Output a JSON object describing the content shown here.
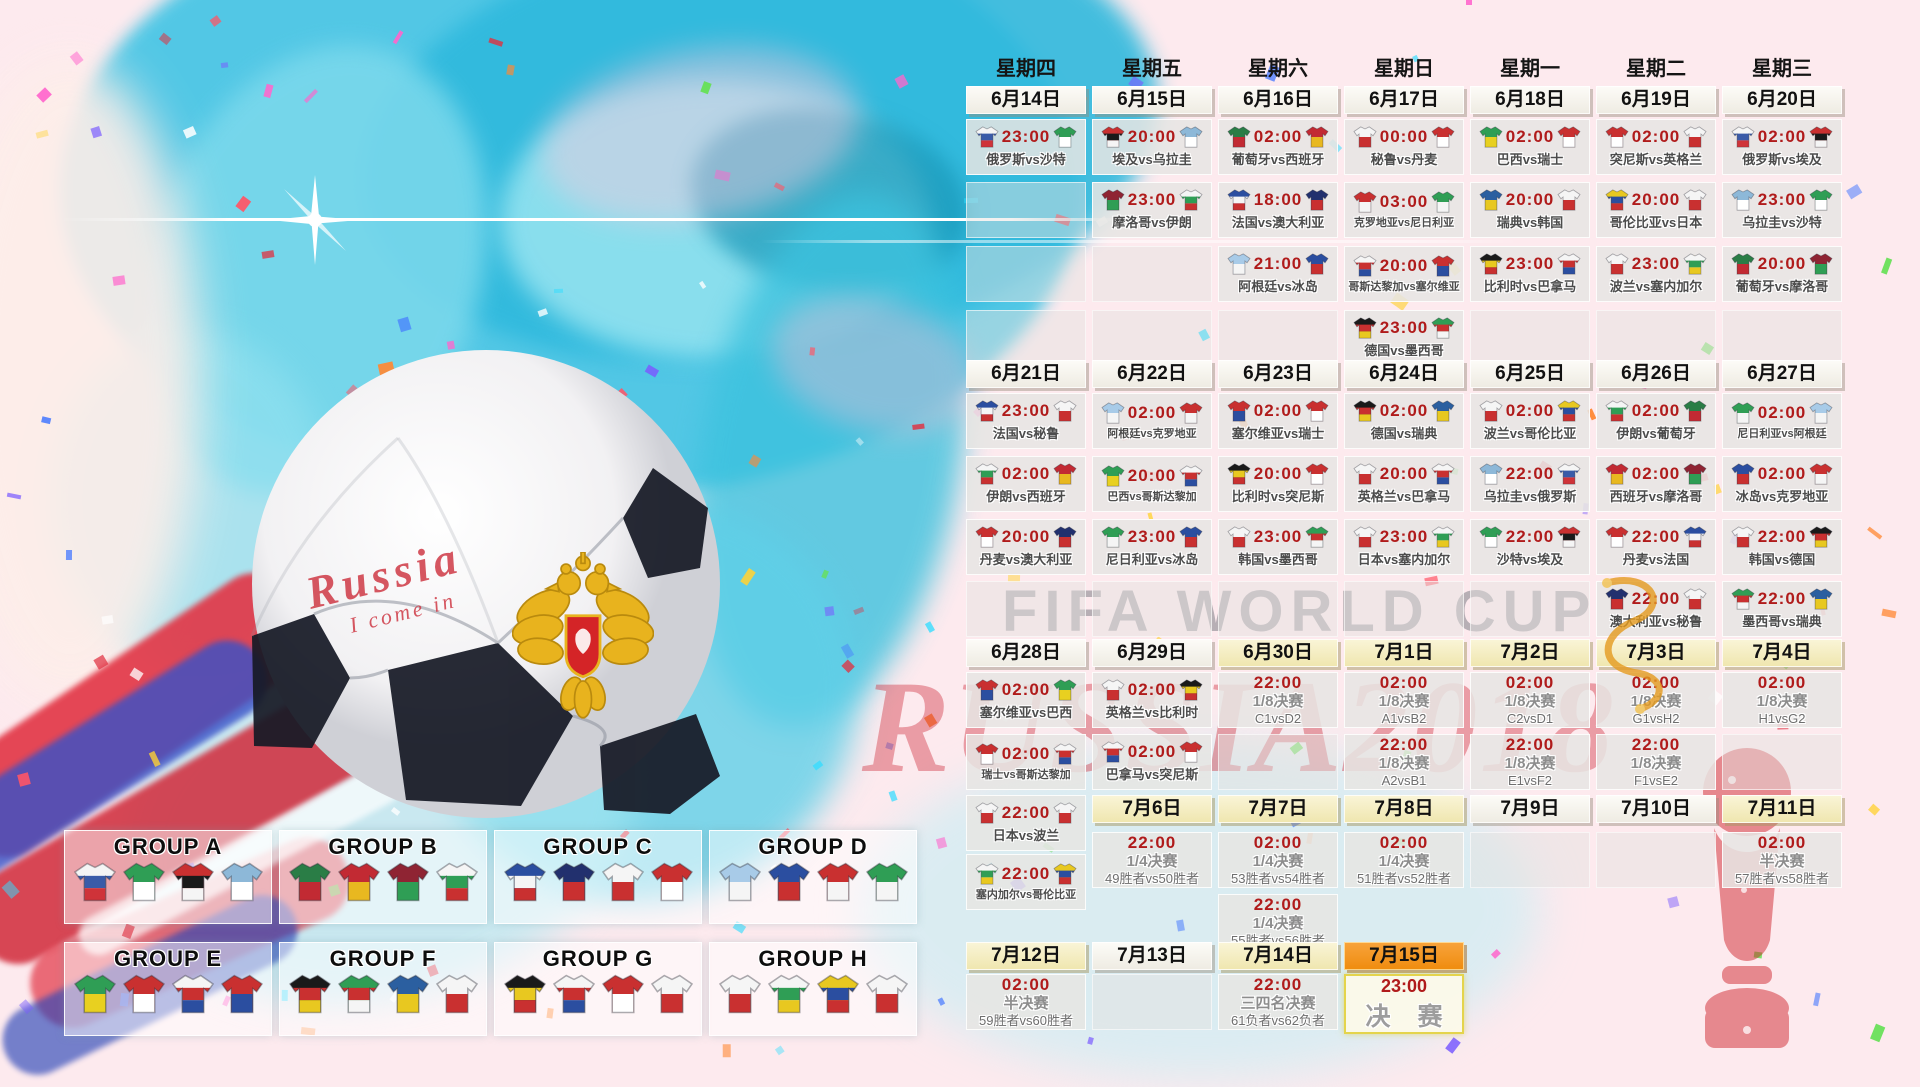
{
  "watermark": {
    "line1": "FIFA WORLD CUP",
    "line2": "RUSSIA2018"
  },
  "ball": {
    "text1": "Russia",
    "text2": "I come in"
  },
  "calendar": {
    "weekdays": [
      "星期四",
      "星期五",
      "星期六",
      "星期日",
      "星期一",
      "星期二",
      "星期三"
    ],
    "rows": [
      {
        "kind": "dates",
        "cells": [
          {
            "t": "d",
            "label": "6月14日",
            "s": "plain"
          },
          {
            "t": "d",
            "label": "6月15日",
            "s": "plain"
          },
          {
            "t": "d",
            "label": "6月16日",
            "s": "plain"
          },
          {
            "t": "d",
            "label": "6月17日",
            "s": "plain"
          },
          {
            "t": "d",
            "label": "6月18日",
            "s": "plain"
          },
          {
            "t": "d",
            "label": "6月19日",
            "s": "plain"
          },
          {
            "t": "d",
            "label": "6月20日",
            "s": "plain"
          }
        ]
      },
      {
        "kind": "cells",
        "cells": [
          {
            "t": "m",
            "time": "23:00",
            "home": "俄罗斯",
            "away": "沙特",
            "label": "俄罗斯vs沙特"
          },
          {
            "t": "m",
            "time": "20:00",
            "home": "埃及",
            "away": "乌拉圭",
            "label": "埃及vs乌拉圭"
          },
          {
            "t": "m",
            "time": "02:00",
            "home": "葡萄牙",
            "away": "西班牙",
            "label": "葡萄牙vs西班牙"
          },
          {
            "t": "m",
            "time": "00:00",
            "home": "秘鲁",
            "away": "丹麦",
            "label": "秘鲁vs丹麦"
          },
          {
            "t": "m",
            "time": "02:00",
            "home": "巴西",
            "away": "瑞士",
            "label": "巴西vs瑞士"
          },
          {
            "t": "m",
            "time": "02:00",
            "home": "突尼斯",
            "away": "英格兰",
            "label": "突尼斯vs英格兰"
          },
          {
            "t": "m",
            "time": "02:00",
            "home": "俄罗斯",
            "away": "埃及",
            "label": "俄罗斯vs埃及"
          }
        ]
      },
      {
        "kind": "cells",
        "cells": [
          {
            "t": "e"
          },
          {
            "t": "m",
            "time": "23:00",
            "home": "摩洛哥",
            "away": "伊朗",
            "label": "摩洛哥vs伊朗"
          },
          {
            "t": "m",
            "time": "18:00",
            "home": "法国",
            "away": "澳大利亚",
            "label": "法国vs澳大利亚"
          },
          {
            "t": "m",
            "time": "03:00",
            "home": "克罗地亚",
            "away": "尼日利亚",
            "label": "克罗地亚vs尼日利亚"
          },
          {
            "t": "m",
            "time": "20:00",
            "home": "瑞典",
            "away": "韩国",
            "label": "瑞典vs韩国"
          },
          {
            "t": "m",
            "time": "20:00",
            "home": "哥伦比亚",
            "away": "日本",
            "label": "哥伦比亚vs日本"
          },
          {
            "t": "m",
            "time": "23:00",
            "home": "乌拉圭",
            "away": "沙特",
            "label": "乌拉圭vs沙特"
          }
        ]
      },
      {
        "kind": "cells",
        "cells": [
          {
            "t": "e"
          },
          {
            "t": "e"
          },
          {
            "t": "m",
            "time": "21:00",
            "home": "阿根廷",
            "away": "冰岛",
            "label": "阿根廷vs冰岛"
          },
          {
            "t": "m",
            "time": "20:00",
            "home": "哥斯达黎加",
            "away": "塞尔维亚",
            "label": "哥斯达黎加vs塞尔维亚"
          },
          {
            "t": "m",
            "time": "23:00",
            "home": "比利时",
            "away": "巴拿马",
            "label": "比利时vs巴拿马"
          },
          {
            "t": "m",
            "time": "23:00",
            "home": "波兰",
            "away": "塞内加尔",
            "label": "波兰vs塞内加尔"
          },
          {
            "t": "m",
            "time": "20:00",
            "home": "葡萄牙",
            "away": "摩洛哥",
            "label": "葡萄牙vs摩洛哥"
          }
        ]
      },
      {
        "kind": "cells",
        "cells": [
          {
            "t": "e"
          },
          {
            "t": "e"
          },
          {
            "t": "e"
          },
          {
            "t": "m",
            "time": "23:00",
            "home": "德国",
            "away": "墨西哥",
            "label": "德国vs墨西哥"
          },
          {
            "t": "e"
          },
          {
            "t": "e"
          },
          {
            "t": "e"
          }
        ]
      },
      {
        "kind": "dates",
        "cells": [
          {
            "t": "d",
            "label": "6月21日",
            "s": "plain"
          },
          {
            "t": "d",
            "label": "6月22日",
            "s": "plain"
          },
          {
            "t": "d",
            "label": "6月23日",
            "s": "plain"
          },
          {
            "t": "d",
            "label": "6月24日",
            "s": "plain"
          },
          {
            "t": "d",
            "label": "6月25日",
            "s": "plain"
          },
          {
            "t": "d",
            "label": "6月26日",
            "s": "plain"
          },
          {
            "t": "d",
            "label": "6月27日",
            "s": "plain"
          }
        ]
      },
      {
        "kind": "cells",
        "cells": [
          {
            "t": "m",
            "time": "23:00",
            "home": "法国",
            "away": "秘鲁",
            "label": "法国vs秘鲁"
          },
          {
            "t": "m",
            "time": "02:00",
            "home": "阿根廷",
            "away": "克罗地亚",
            "label": "阿根廷vs克罗地亚"
          },
          {
            "t": "m",
            "time": "02:00",
            "home": "塞尔维亚",
            "away": "瑞士",
            "label": "塞尔维亚vs瑞士"
          },
          {
            "t": "m",
            "time": "02:00",
            "home": "德国",
            "away": "瑞典",
            "label": "德国vs瑞典"
          },
          {
            "t": "m",
            "time": "02:00",
            "home": "波兰",
            "away": "哥伦比亚",
            "label": "波兰vs哥伦比亚"
          },
          {
            "t": "m",
            "time": "02:00",
            "home": "伊朗",
            "away": "葡萄牙",
            "label": "伊朗vs葡萄牙"
          },
          {
            "t": "m",
            "time": "02:00",
            "home": "尼日利亚",
            "away": "阿根廷",
            "label": "尼日利亚vs阿根廷"
          }
        ]
      },
      {
        "kind": "cells",
        "cells": [
          {
            "t": "m",
            "time": "02:00",
            "home": "伊朗",
            "away": "西班牙",
            "label": "伊朗vs西班牙"
          },
          {
            "t": "m",
            "time": "20:00",
            "home": "巴西",
            "away": "哥斯达黎加",
            "label": "巴西vs哥斯达黎加"
          },
          {
            "t": "m",
            "time": "20:00",
            "home": "比利时",
            "away": "突尼斯",
            "label": "比利时vs突尼斯"
          },
          {
            "t": "m",
            "time": "20:00",
            "home": "英格兰",
            "away": "巴拿马",
            "label": "英格兰vs巴拿马"
          },
          {
            "t": "m",
            "time": "22:00",
            "home": "乌拉圭",
            "away": "俄罗斯",
            "label": "乌拉圭vs俄罗斯"
          },
          {
            "t": "m",
            "time": "02:00",
            "home": "西班牙",
            "away": "摩洛哥",
            "label": "西班牙vs摩洛哥"
          },
          {
            "t": "m",
            "time": "02:00",
            "home": "冰岛",
            "away": "克罗地亚",
            "label": "冰岛vs克罗地亚"
          }
        ]
      },
      {
        "kind": "cells",
        "cells": [
          {
            "t": "m",
            "time": "20:00",
            "home": "丹麦",
            "away": "澳大利亚",
            "label": "丹麦vs澳大利亚"
          },
          {
            "t": "m",
            "time": "23:00",
            "home": "尼日利亚",
            "away": "冰岛",
            "label": "尼日利亚vs冰岛"
          },
          {
            "t": "m",
            "time": "23:00",
            "home": "韩国",
            "away": "墨西哥",
            "label": "韩国vs墨西哥"
          },
          {
            "t": "m",
            "time": "23:00",
            "home": "日本",
            "away": "塞内加尔",
            "label": "日本vs塞内加尔"
          },
          {
            "t": "m",
            "time": "22:00",
            "home": "沙特",
            "away": "埃及",
            "label": "沙特vs埃及"
          },
          {
            "t": "m",
            "time": "22:00",
            "home": "丹麦",
            "away": "法国",
            "label": "丹麦vs法国"
          },
          {
            "t": "m",
            "time": "22:00",
            "home": "韩国",
            "away": "德国",
            "label": "韩国vs德国"
          }
        ]
      },
      {
        "kind": "cells",
        "cells": [
          {
            "t": "e"
          },
          {
            "t": "e"
          },
          {
            "t": "e"
          },
          {
            "t": "e"
          },
          {
            "t": "e"
          },
          {
            "t": "m",
            "time": "22:00",
            "home": "澳大利亚",
            "away": "秘鲁",
            "label": "澳大利亚vs秘鲁"
          },
          {
            "t": "m",
            "time": "22:00",
            "home": "墨西哥",
            "away": "瑞典",
            "label": "墨西哥vs瑞典"
          }
        ]
      },
      {
        "kind": "dates",
        "cells": [
          {
            "t": "d",
            "label": "6月28日",
            "s": "plain"
          },
          {
            "t": "d",
            "label": "6月29日",
            "s": "plain"
          },
          {
            "t": "d",
            "label": "6月30日",
            "s": "hl"
          },
          {
            "t": "d",
            "label": "7月1日",
            "s": "hl"
          },
          {
            "t": "d",
            "label": "7月2日",
            "s": "hl"
          },
          {
            "t": "d",
            "label": "7月3日",
            "s": "hl"
          },
          {
            "t": "d",
            "label": "7月4日",
            "s": "hl"
          }
        ]
      },
      {
        "kind": "cells",
        "cells": [
          {
            "t": "m",
            "time": "02:00",
            "home": "塞尔维亚",
            "away": "巴西",
            "label": "塞尔维亚vs巴西"
          },
          {
            "t": "m",
            "time": "02:00",
            "home": "英格兰",
            "away": "比利时",
            "label": "英格兰vs比利时"
          },
          {
            "t": "k",
            "time": "22:00",
            "stage": "1/8决赛",
            "line": "C1vsD2"
          },
          {
            "t": "k",
            "time": "02:00",
            "stage": "1/8决赛",
            "line": "A1vsB2"
          },
          {
            "t": "k",
            "time": "02:00",
            "stage": "1/8决赛",
            "line": "C2vsD1"
          },
          {
            "t": "k",
            "time": "02:00",
            "stage": "1/8决赛",
            "line": "G1vsH2"
          },
          {
            "t": "k",
            "time": "02:00",
            "stage": "1/8决赛",
            "line": "H1vsG2"
          }
        ]
      },
      {
        "kind": "cells",
        "cells": [
          {
            "t": "m",
            "time": "02:00",
            "home": "瑞士",
            "away": "哥斯达黎加",
            "label": "瑞士vs哥斯达黎加"
          },
          {
            "t": "m",
            "time": "02:00",
            "home": "巴拿马",
            "away": "突尼斯",
            "label": "巴拿马vs突尼斯"
          },
          {
            "t": "e"
          },
          {
            "t": "k",
            "time": "22:00",
            "stage": "1/8决赛",
            "line": "A2vsB1"
          },
          {
            "t": "k",
            "time": "22:00",
            "stage": "1/8决赛",
            "line": "E1vsF2"
          },
          {
            "t": "k",
            "time": "22:00",
            "stage": "1/8决赛",
            "line": "F1vsE2"
          },
          {
            "t": "e"
          }
        ]
      },
      {
        "kind": "cells",
        "cells": [
          {
            "t": "m",
            "time": "22:00",
            "home": "日本",
            "away": "波兰",
            "label": "日本vs波兰"
          },
          {
            "t": "d",
            "label": "7月6日",
            "s": "hl"
          },
          {
            "t": "d",
            "label": "7月7日",
            "s": "hl"
          },
          {
            "t": "d",
            "label": "7月8日",
            "s": "hl"
          },
          {
            "t": "d",
            "label": "7月9日",
            "s": "plain"
          },
          {
            "t": "d",
            "label": "7月10日",
            "s": "plain"
          },
          {
            "t": "d",
            "label": "7月11日",
            "s": "hl"
          }
        ]
      },
      {
        "kind": "cells",
        "cells": [
          {
            "t": "m",
            "time": "22:00",
            "home": "塞内加尔",
            "away": "哥伦比亚",
            "label": "塞内加尔vs哥伦比亚"
          },
          {
            "t": "k",
            "time": "22:00",
            "stage": "1/4决赛",
            "line": "49胜者vs50胜者"
          },
          {
            "t": "k",
            "time": "02:00",
            "stage": "1/4决赛",
            "line": "53胜者vs54胜者"
          },
          {
            "t": "k",
            "time": "02:00",
            "stage": "1/4决赛",
            "line": "51胜者vs52胜者"
          },
          {
            "t": "e"
          },
          {
            "t": "e"
          },
          {
            "t": "k",
            "time": "02:00",
            "stage": "半决赛",
            "line": "57胜者vs58胜者"
          }
        ]
      },
      {
        "kind": "cells",
        "cells": [
          {
            "t": "n"
          },
          {
            "t": "n"
          },
          {
            "t": "k",
            "time": "22:00",
            "stage": "1/4决赛",
            "line": "55胜者vs56胜者"
          },
          {
            "t": "n"
          },
          {
            "t": "n"
          },
          {
            "t": "n"
          },
          {
            "t": "n"
          }
        ]
      },
      {
        "kind": "dates",
        "cells": [
          {
            "t": "d",
            "label": "7月12日",
            "s": "hl"
          },
          {
            "t": "d",
            "label": "7月13日",
            "s": "plain"
          },
          {
            "t": "d",
            "label": "7月14日",
            "s": "hl"
          },
          {
            "t": "d",
            "label": "7月15日",
            "s": "final"
          },
          {
            "t": "n"
          },
          {
            "t": "n"
          },
          {
            "t": "n"
          }
        ]
      },
      {
        "kind": "cells",
        "cells": [
          {
            "t": "k",
            "time": "02:00",
            "stage": "半决赛",
            "line": "59胜者vs60胜者"
          },
          {
            "t": "e"
          },
          {
            "t": "k",
            "time": "22:00",
            "stage": "三四名决赛",
            "line": "61负者vs62负者"
          },
          {
            "t": "f",
            "time": "23:00",
            "stage": "决 赛"
          },
          {
            "t": "n"
          },
          {
            "t": "n"
          },
          {
            "t": "n"
          }
        ]
      }
    ]
  },
  "groups": [
    {
      "label": "GROUP A",
      "teams": [
        "俄罗斯",
        "沙特",
        "埃及",
        "乌拉圭"
      ]
    },
    {
      "label": "GROUP B",
      "teams": [
        "葡萄牙",
        "西班牙",
        "摩洛哥",
        "伊朗"
      ]
    },
    {
      "label": "GROUP C",
      "teams": [
        "法国",
        "澳大利亚",
        "秘鲁",
        "丹麦"
      ]
    },
    {
      "label": "GROUP D",
      "teams": [
        "阿根廷",
        "冰岛",
        "克罗地亚",
        "尼日利亚"
      ]
    },
    {
      "label": "GROUP E",
      "teams": [
        "巴西",
        "瑞士",
        "哥斯达黎加",
        "塞尔维亚"
      ]
    },
    {
      "label": "GROUP F",
      "teams": [
        "德国",
        "墨西哥",
        "瑞典",
        "韩国"
      ]
    },
    {
      "label": "GROUP G",
      "teams": [
        "比利时",
        "巴拿马",
        "突尼斯",
        "英格兰"
      ]
    },
    {
      "label": "GROUP H",
      "teams": [
        "波兰",
        "塞内加尔",
        "哥伦比亚",
        "日本"
      ]
    }
  ],
  "team_colors": {
    "俄罗斯": {
      "c1": "#f5f5f5",
      "c2": "#3a5ba8",
      "c3": "#cf3339"
    },
    "沙特": {
      "c1": "#2f9e55",
      "c2": "#ffffff"
    },
    "埃及": {
      "c1": "#c93030",
      "c2": "#1a1a1a",
      "c3": "#f5f5f5"
    },
    "乌拉圭": {
      "c1": "#8db8d8",
      "c2": "#ffffff"
    },
    "葡萄牙": {
      "c1": "#2a7d46",
      "c2": "#c22a33"
    },
    "西班牙": {
      "c1": "#c22a33",
      "c2": "#e8b820"
    },
    "秘鲁": {
      "c1": "#f5f5f5",
      "c2": "#c93030"
    },
    "丹麦": {
      "c1": "#c93030",
      "c2": "#ffffff"
    },
    "巴西": {
      "c1": "#2f9e55",
      "c2": "#e8d020"
    },
    "瑞士": {
      "c1": "#c93030",
      "c2": "#ffffff"
    },
    "突尼斯": {
      "c1": "#c93030",
      "c2": "#ffffff"
    },
    "英格兰": {
      "c1": "#f5f5f5",
      "c2": "#c93030"
    },
    "摩洛哥": {
      "c1": "#8f2433",
      "c2": "#2f9e55"
    },
    "伊朗": {
      "c1": "#f5f5f5",
      "c2": "#2f9e55",
      "c3": "#c93030"
    },
    "法国": {
      "c1": "#2b4ea0",
      "c2": "#f5f5f5",
      "c3": "#c93030"
    },
    "澳大利亚": {
      "c1": "#22306e",
      "c2": "#c93030"
    },
    "克罗地亚": {
      "c1": "#c93030",
      "c2": "#f5f5f5"
    },
    "尼日利亚": {
      "c1": "#2f9e55",
      "c2": "#f5f5f5"
    },
    "瑞典": {
      "c1": "#2b5fa0",
      "c2": "#e8c820"
    },
    "韩国": {
      "c1": "#f5f5f5",
      "c2": "#c93030"
    },
    "哥伦比亚": {
      "c1": "#e8c820",
      "c2": "#2b4ea0",
      "c3": "#c93030"
    },
    "日本": {
      "c1": "#f5f5f5",
      "c2": "#c93030"
    },
    "阿根廷": {
      "c1": "#a8cbe8",
      "c2": "#f5f5f5"
    },
    "冰岛": {
      "c1": "#2b4ea0",
      "c2": "#c93030"
    },
    "哥斯达黎加": {
      "c1": "#f5f5f5",
      "c2": "#c93030",
      "c3": "#2b4ea0"
    },
    "塞尔维亚": {
      "c1": "#c93030",
      "c2": "#2b4ea0"
    },
    "比利时": {
      "c1": "#1a1a1a",
      "c2": "#e8c820",
      "c3": "#c93030"
    },
    "巴拿马": {
      "c1": "#f5f5f5",
      "c2": "#c93030",
      "c3": "#2b4ea0"
    },
    "波兰": {
      "c1": "#f5f5f5",
      "c2": "#c93030"
    },
    "塞内加尔": {
      "c1": "#f5f5f5",
      "c2": "#2f9e55",
      "c3": "#e8c820"
    },
    "德国": {
      "c1": "#1a1a1a",
      "c2": "#c93030",
      "c3": "#e8c820"
    },
    "墨西哥": {
      "c1": "#2f9e55",
      "c2": "#c93030",
      "c3": "#f5f5f5"
    }
  }
}
